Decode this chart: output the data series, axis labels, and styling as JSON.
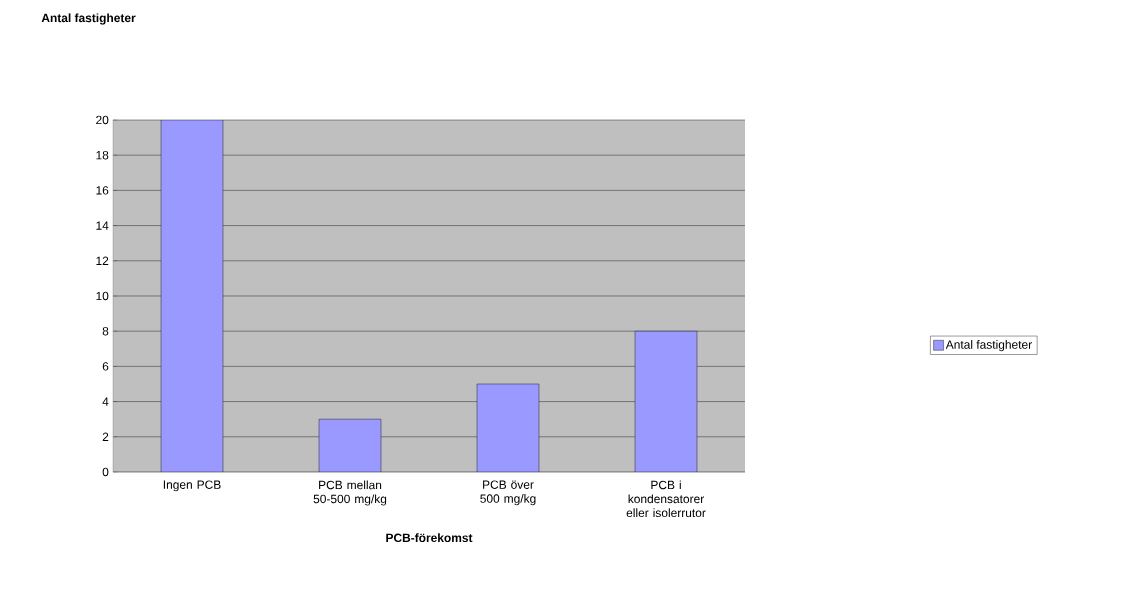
{
  "chart_data": {
    "type": "bar",
    "title": "Antal fastigheter",
    "xlabel": "PCB-förekomst",
    "categories": [
      "Ingen PCB",
      "PCB mellan 50-500 mg/kg",
      "PCB över 500 mg/kg",
      "PCB i kondensatorer eller isolerrutor"
    ],
    "series": [
      {
        "name": "Antal fastigheter",
        "color": "#9999ff",
        "values": [
          20,
          3,
          5,
          8
        ]
      }
    ],
    "ylim": [
      0,
      20
    ],
    "yticks": [
      0,
      2,
      4,
      6,
      8,
      10,
      12,
      14,
      16,
      18,
      20
    ],
    "grid": "y",
    "legend": "right"
  }
}
